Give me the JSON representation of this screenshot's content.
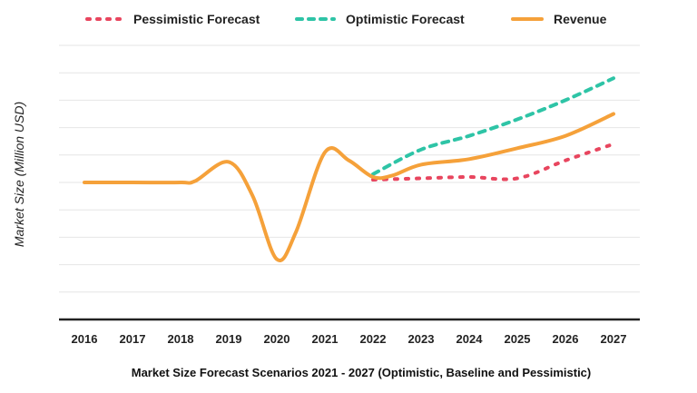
{
  "chart_data": {
    "type": "line",
    "title": "Market Size Forecast Scenarios 2021 - 2027 (Optimistic, Baseline and Pessimistic)",
    "xlabel": "",
    "ylabel": "Market Size (Million USD)",
    "categories": [
      "2016",
      "2017",
      "2018",
      "2019",
      "2020",
      "2021",
      "2022",
      "2023",
      "2024",
      "2025",
      "2026",
      "2027"
    ],
    "ylim": [
      0,
      10
    ],
    "grid": true,
    "legend_position": "top",
    "series": [
      {
        "name": "Pessimistic Forecast",
        "color": "#e8455e",
        "style": "dotted",
        "points": [
          [
            2022,
            5.1
          ],
          [
            2023,
            5.15
          ],
          [
            2024,
            5.2
          ],
          [
            2025,
            5.15
          ],
          [
            2026,
            5.8
          ],
          [
            2027,
            6.4
          ]
        ]
      },
      {
        "name": "Optimistic Forecast",
        "color": "#2ec4a6",
        "style": "dashed",
        "points": [
          [
            2022,
            5.3
          ],
          [
            2023,
            6.2
          ],
          [
            2024,
            6.7
          ],
          [
            2025,
            7.3
          ],
          [
            2026,
            8.0
          ],
          [
            2027,
            8.8
          ]
        ]
      },
      {
        "name": "Revenue",
        "color": "#f5a13a",
        "style": "solid",
        "points": [
          [
            2016,
            5.0
          ],
          [
            2017,
            5.0
          ],
          [
            2018,
            5.0
          ],
          [
            2018.3,
            5.05
          ],
          [
            2019,
            5.75
          ],
          [
            2019.5,
            4.5
          ],
          [
            2020,
            2.2
          ],
          [
            2020.4,
            3.2
          ],
          [
            2021,
            6.1
          ],
          [
            2021.5,
            5.8
          ],
          [
            2022,
            5.2
          ],
          [
            2022.4,
            5.25
          ],
          [
            2023,
            5.65
          ],
          [
            2024,
            5.85
          ],
          [
            2025,
            6.25
          ],
          [
            2026,
            6.7
          ],
          [
            2027,
            7.5
          ]
        ]
      }
    ]
  }
}
